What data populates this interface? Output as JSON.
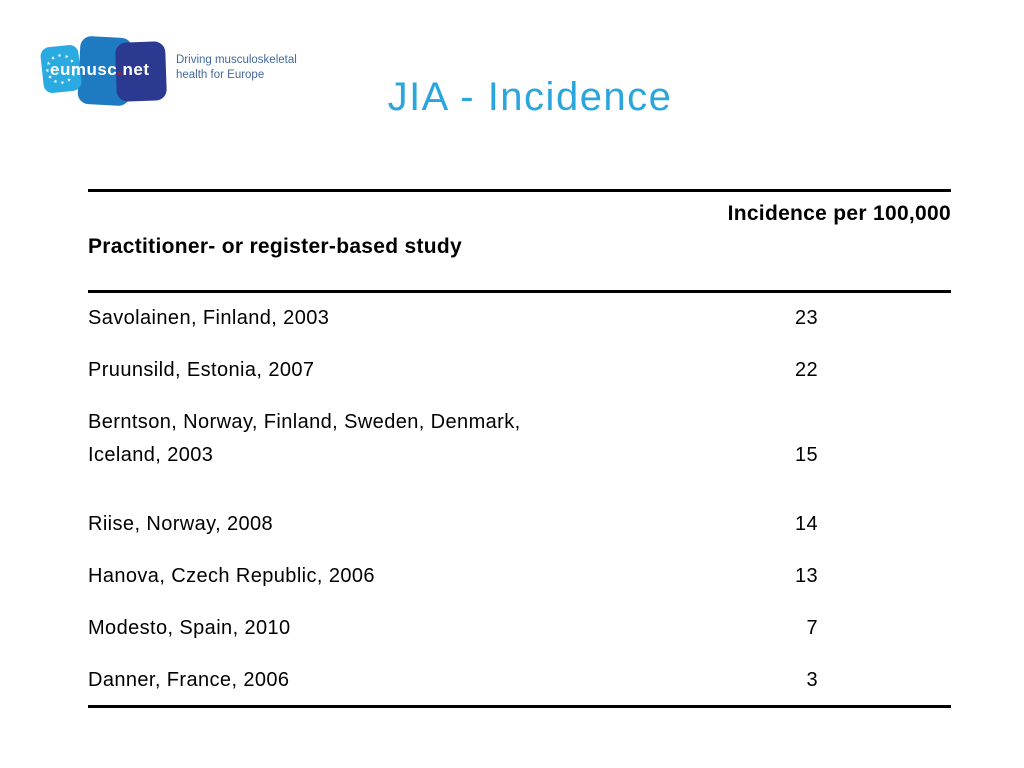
{
  "logo": {
    "brand_prefix": "eumusc",
    "brand_dot": ".",
    "brand_suffix": "net",
    "tagline_line1": "Driving musculoskeletal",
    "tagline_line2": "health for Europe"
  },
  "title": "JIA - Incidence",
  "table": {
    "col_study_header": "Practitioner- or register-based study",
    "col_value_header": "Incidence per 100,000",
    "rows": [
      {
        "study": "Savolainen, Finland, 2003",
        "value": "23"
      },
      {
        "study": "Pruunsild, Estonia, 2007",
        "value": "22"
      },
      {
        "study": "Berntson, Norway, Finland, Sweden, Denmark,",
        "study_line2": "Iceland, 2003",
        "value": "15"
      },
      {
        "study": "Riise, Norway, 2008",
        "value": "14"
      },
      {
        "study": "Hanova, Czech Republic, 2006",
        "value": "13"
      },
      {
        "study": "Modesto, Spain, 2010",
        "value": "7"
      },
      {
        "study": "Danner, France, 2006",
        "value": "3"
      }
    ]
  },
  "colors": {
    "title_blue": "#2BA6DC",
    "logo_light_blue": "#29ABE2",
    "logo_medium_blue": "#1E7BC2",
    "logo_dark_blue": "#2B3990",
    "logo_dot_red": "#B01E24",
    "tagline_blue": "#44699D",
    "text_black": "#000000",
    "rule_black": "#000000",
    "background": "#FFFFFF"
  }
}
